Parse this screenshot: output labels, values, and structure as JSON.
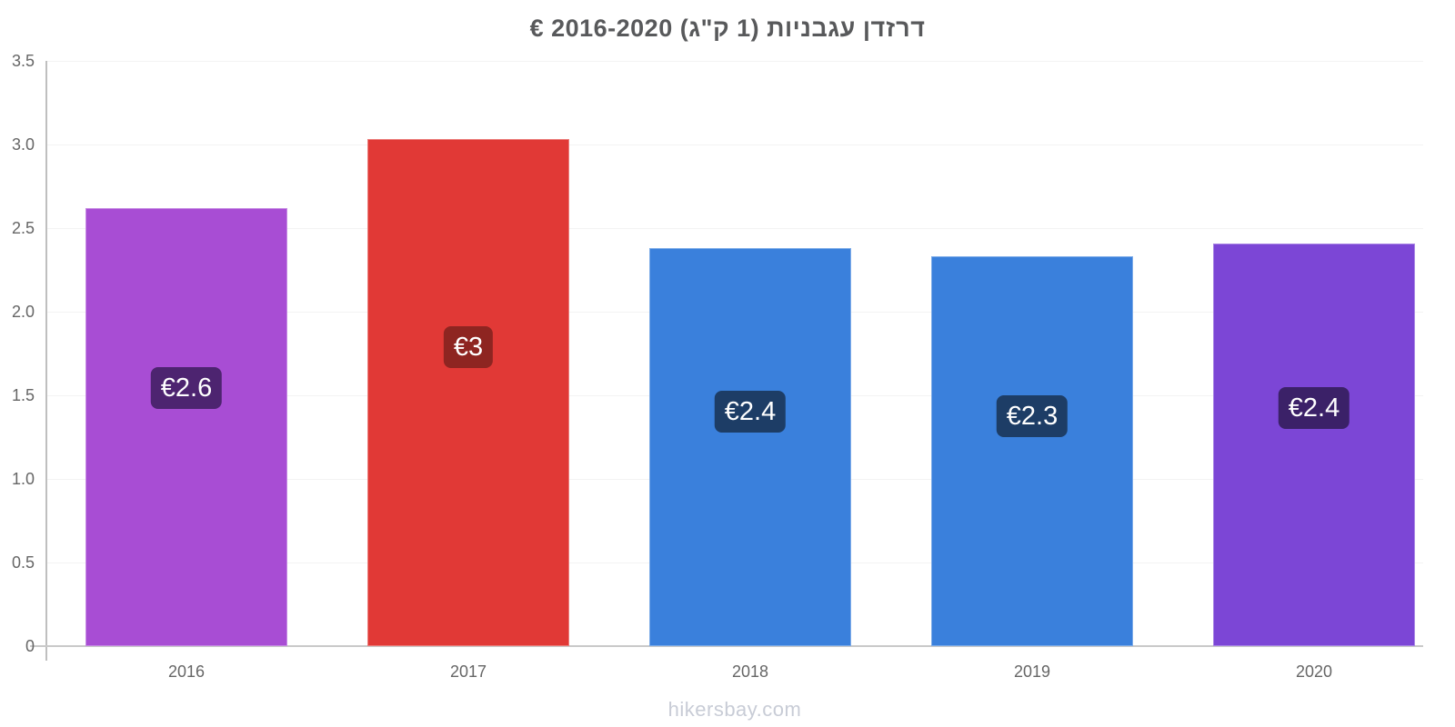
{
  "title": "דרזדן עגבניות (1 ק\"ג) 2016-2020 €",
  "footer": "hikersbay.com",
  "chart_data": {
    "type": "bar",
    "title": "דרזדן עגבניות (1 ק\"ג) 2016-2020 €",
    "categories": [
      "2016",
      "2017",
      "2018",
      "2019",
      "2020"
    ],
    "values": [
      2.62,
      3.03,
      2.38,
      2.33,
      2.41
    ],
    "value_labels": [
      "€2.6",
      "€3",
      "€2.4",
      "€2.3",
      "€2.4"
    ],
    "bar_colors": [
      "#a84dd4",
      "#e13936",
      "#3a80dc",
      "#3a80dc",
      "#7c46d6"
    ],
    "value_label_bg": [
      "#4d2470",
      "#8e2521",
      "#1d3d66",
      "#1d3d66",
      "#3b2168"
    ],
    "currency": "€",
    "xlabel": "",
    "ylabel": "",
    "ylim": [
      0,
      3.5
    ],
    "yticks": [
      0,
      0.5,
      1.0,
      1.5,
      2.0,
      2.5,
      3.0,
      3.5
    ],
    "grid": true,
    "legend": false
  },
  "colors": {
    "background": "#ffffff",
    "title_text": "#58595b",
    "tick_text": "#666666",
    "axis_line": "#bfbfbf",
    "baseline": "#c9c9c9",
    "grid_line": "#f3f3f3",
    "value_text": "#ffffff",
    "footer_text": "#c8ccd6"
  }
}
